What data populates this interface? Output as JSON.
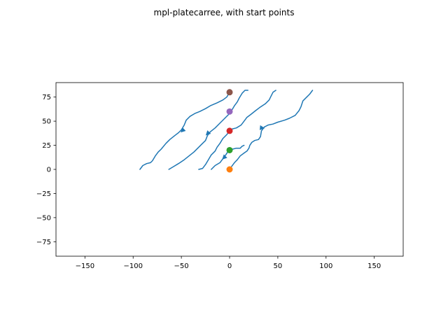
{
  "figure": {
    "suptitle": "mpl-platecarree, with start points"
  },
  "chart_data": {
    "type": "line",
    "title": "mpl-platecarree, with start points",
    "xlabel": "",
    "ylabel": "",
    "xlim": [
      -180,
      180
    ],
    "ylim": [
      -90,
      90
    ],
    "xticks": [
      -150,
      -100,
      -50,
      0,
      50,
      100,
      150
    ],
    "yticks": [
      -75,
      -50,
      -25,
      0,
      25,
      50,
      75
    ],
    "xtick_labels": [
      "−150",
      "−100",
      "−50",
      "0",
      "50",
      "100",
      "150"
    ],
    "ytick_labels": [
      "−75",
      "−50",
      "−25",
      "0",
      "25",
      "50",
      "75"
    ],
    "grid": false,
    "stream_color": "#1f77b4",
    "streamlines": [
      {
        "points": [
          [
            -93,
            0
          ],
          [
            -90,
            4
          ],
          [
            -86,
            6
          ],
          [
            -82,
            7
          ],
          [
            -80,
            9
          ],
          [
            -77,
            14
          ],
          [
            -74,
            18
          ],
          [
            -71,
            21
          ],
          [
            -66,
            27
          ],
          [
            -62,
            31
          ],
          [
            -57,
            35
          ],
          [
            -53,
            38
          ],
          [
            -50,
            41
          ],
          [
            -47,
            46
          ],
          [
            -45,
            51
          ],
          [
            -41,
            55
          ],
          [
            -36,
            58
          ],
          [
            -31,
            60
          ],
          [
            -25,
            63
          ],
          [
            -20,
            66
          ],
          [
            -13,
            69
          ],
          [
            -7,
            72
          ],
          [
            -3,
            75
          ],
          [
            0,
            80
          ],
          [
            2,
            81
          ]
        ],
        "arrow": {
          "at": [
            -49,
            40
          ],
          "dir": [
            -1,
            -0.95
          ]
        }
      },
      {
        "points": [
          [
            -63,
            0
          ],
          [
            -58,
            3
          ],
          [
            -53,
            6
          ],
          [
            -47,
            10
          ],
          [
            -42,
            14
          ],
          [
            -37,
            18
          ],
          [
            -33,
            22
          ],
          [
            -29,
            26
          ],
          [
            -25,
            30
          ],
          [
            -23,
            35
          ],
          [
            -20,
            39
          ],
          [
            -15,
            43
          ],
          [
            -10,
            48
          ],
          [
            -5,
            53
          ],
          [
            -1,
            57
          ],
          [
            2,
            61
          ],
          [
            5,
            66
          ],
          [
            8,
            70
          ],
          [
            10,
            74
          ],
          [
            13,
            79
          ],
          [
            16,
            82
          ],
          [
            19,
            82
          ]
        ],
        "arrow": {
          "at": [
            -23,
            37
          ],
          "dir": [
            -1,
            -1
          ]
        }
      },
      {
        "points": [
          [
            -32,
            0
          ],
          [
            -28,
            1
          ],
          [
            -25,
            5
          ],
          [
            -22,
            10
          ],
          [
            -19,
            15
          ],
          [
            -15,
            19
          ],
          [
            -13,
            23
          ],
          [
            -10,
            27
          ],
          [
            -7,
            32
          ],
          [
            -3,
            36
          ],
          [
            0,
            40
          ],
          [
            3,
            42
          ],
          [
            7,
            43
          ],
          [
            12,
            46
          ],
          [
            15,
            50
          ],
          [
            18,
            54
          ],
          [
            22,
            57
          ],
          [
            27,
            61
          ],
          [
            31,
            64
          ],
          [
            37,
            68
          ],
          [
            41,
            72
          ],
          [
            43,
            76
          ],
          [
            45,
            80
          ],
          [
            48,
            82
          ]
        ],
        "arrow": {
          "at": [
            -6,
            12
          ],
          "dir": [
            -1,
            -1
          ]
        }
      },
      {
        "points": [
          [
            -19,
            0
          ],
          [
            -15,
            4
          ],
          [
            -10,
            7
          ],
          [
            -7,
            11
          ],
          [
            -4,
            15
          ],
          [
            -2,
            18
          ],
          [
            0,
            20
          ],
          [
            3,
            21
          ],
          [
            7,
            22
          ],
          [
            11,
            22
          ],
          [
            13,
            24
          ],
          [
            15,
            25
          ]
        ],
        "arrow": null
      },
      {
        "points": [
          [
            2,
            3
          ],
          [
            5,
            7
          ],
          [
            8,
            10
          ],
          [
            11,
            14
          ],
          [
            15,
            17
          ],
          [
            18,
            19
          ],
          [
            20,
            22
          ],
          [
            21,
            25
          ],
          [
            23,
            28
          ],
          [
            26,
            30
          ],
          [
            30,
            31
          ],
          [
            32,
            34
          ],
          [
            33,
            40
          ],
          [
            36,
            44
          ],
          [
            40,
            46
          ],
          [
            45,
            47
          ],
          [
            50,
            49
          ],
          [
            57,
            51
          ],
          [
            62,
            53
          ],
          [
            68,
            56
          ],
          [
            72,
            61
          ],
          [
            74,
            65
          ],
          [
            76,
            71
          ],
          [
            80,
            75
          ],
          [
            83,
            78
          ],
          [
            86,
            82
          ]
        ],
        "arrow": {
          "at": [
            34,
            43
          ],
          "dir": [
            1,
            -0.1
          ]
        }
      }
    ],
    "start_points": [
      {
        "x": 0,
        "y": 0,
        "color": "#ff7f0e"
      },
      {
        "x": 0,
        "y": 20,
        "color": "#2ca02c"
      },
      {
        "x": 0,
        "y": 40,
        "color": "#d62728"
      },
      {
        "x": 0,
        "y": 60,
        "color": "#9467bd"
      },
      {
        "x": 0,
        "y": 80,
        "color": "#8c564b"
      }
    ]
  }
}
